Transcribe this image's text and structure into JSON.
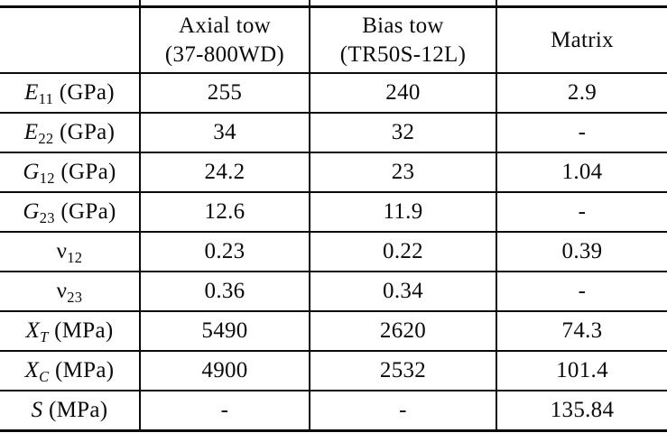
{
  "colors": {
    "rule": "#0a0a0a",
    "background": "#ffffff",
    "text": "#0a0a0a"
  },
  "table": {
    "columns": [
      {
        "line1": "",
        "line2": ""
      },
      {
        "line1": "Axial tow",
        "line2": "(37-800WD)"
      },
      {
        "line1": "Bias tow",
        "line2": "(TR50S-12L)"
      },
      {
        "line1": "Matrix",
        "line2": ""
      }
    ],
    "rows": [
      {
        "sym": "E",
        "sym_italic": true,
        "sub": "11",
        "sub_italic": false,
        "unit": "(GPa)",
        "values": [
          "255",
          "240",
          "2.9"
        ]
      },
      {
        "sym": "E",
        "sym_italic": true,
        "sub": "22",
        "sub_italic": false,
        "unit": "(GPa)",
        "values": [
          "34",
          "32",
          "-"
        ]
      },
      {
        "sym": "G",
        "sym_italic": true,
        "sub": "12",
        "sub_italic": false,
        "unit": "(GPa)",
        "values": [
          "24.2",
          "23",
          "1.04"
        ]
      },
      {
        "sym": "G",
        "sym_italic": true,
        "sub": "23",
        "sub_italic": false,
        "unit": "(GPa)",
        "values": [
          "12.6",
          "11.9",
          "-"
        ]
      },
      {
        "sym": "ν",
        "sym_italic": false,
        "sub": "12",
        "sub_italic": false,
        "unit": "",
        "values": [
          "0.23",
          "0.22",
          "0.39"
        ]
      },
      {
        "sym": "ν",
        "sym_italic": false,
        "sub": "23",
        "sub_italic": false,
        "unit": "",
        "values": [
          "0.36",
          "0.34",
          "-"
        ]
      },
      {
        "sym": "X",
        "sym_italic": true,
        "sub": "T",
        "sub_italic": true,
        "unit": "(MPa)",
        "values": [
          "5490",
          "2620",
          "74.3"
        ]
      },
      {
        "sym": "X",
        "sym_italic": true,
        "sub": "C",
        "sub_italic": true,
        "unit": "(MPa)",
        "values": [
          "4900",
          "2532",
          "101.4"
        ]
      },
      {
        "sym": "S",
        "sym_italic": true,
        "sub": "",
        "sub_italic": false,
        "unit": "(MPa)",
        "values": [
          "-",
          "-",
          "135.84"
        ]
      }
    ]
  }
}
